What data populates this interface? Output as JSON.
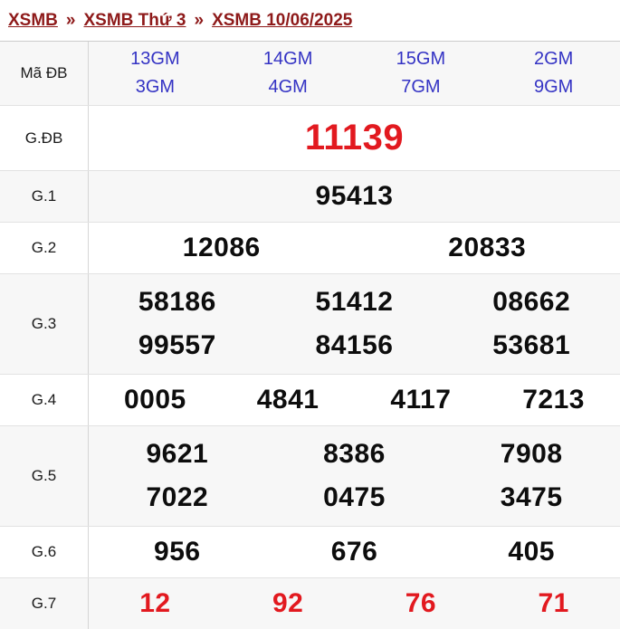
{
  "breadcrumb": {
    "separator": "»",
    "items": [
      {
        "label": "XSMB"
      },
      {
        "label": "XSMB Thứ 3"
      },
      {
        "label": "XSMB 10/06/2025"
      }
    ]
  },
  "table": {
    "rows": [
      {
        "label": "Mã ĐB",
        "type": "code",
        "lines": [
          [
            "13GM",
            "14GM",
            "15GM",
            "2GM"
          ],
          [
            "3GM",
            "4GM",
            "7GM",
            "9GM"
          ]
        ]
      },
      {
        "label": "G.ĐB",
        "type": "special",
        "lines": [
          [
            "11139"
          ]
        ]
      },
      {
        "label": "G.1",
        "type": "normal",
        "lines": [
          [
            "95413"
          ]
        ]
      },
      {
        "label": "G.2",
        "type": "normal",
        "lines": [
          [
            "12086",
            "20833"
          ]
        ]
      },
      {
        "label": "G.3",
        "type": "normal",
        "lines": [
          [
            "58186",
            "51412",
            "08662"
          ],
          [
            "99557",
            "84156",
            "53681"
          ]
        ]
      },
      {
        "label": "G.4",
        "type": "normal",
        "lines": [
          [
            "0005",
            "4841",
            "4117",
            "7213"
          ]
        ]
      },
      {
        "label": "G.5",
        "type": "normal",
        "lines": [
          [
            "9621",
            "8386",
            "7908"
          ],
          [
            "7022",
            "0475",
            "3475"
          ]
        ]
      },
      {
        "label": "G.6",
        "type": "normal",
        "lines": [
          [
            "956",
            "676",
            "405"
          ]
        ]
      },
      {
        "label": "G.7",
        "type": "red",
        "lines": [
          [
            "12",
            "92",
            "76",
            "71"
          ]
        ]
      }
    ]
  },
  "colors": {
    "breadcrumb_maroon": "#8e1a1a",
    "code_blue": "#3433c4",
    "result_red": "#e2191f",
    "row_alt_gray": "#f7f7f7"
  }
}
